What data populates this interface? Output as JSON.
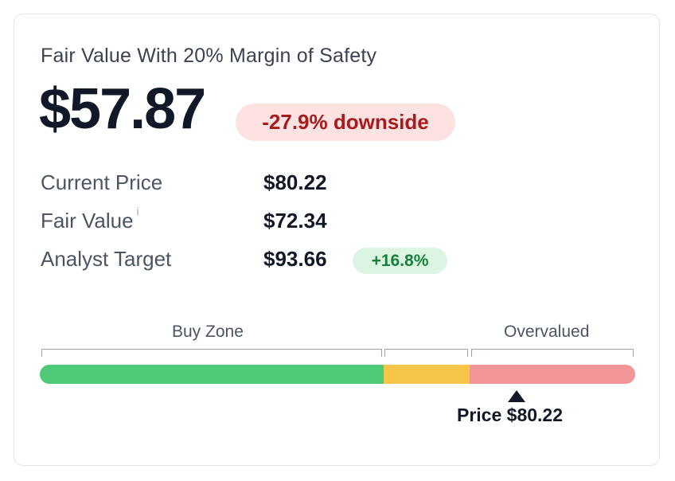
{
  "card": {
    "title": "Fair Value With 20% Margin of Safety",
    "fair_value_mos": "$57.87",
    "downside_badge": "-27.9% downside"
  },
  "metrics": [
    {
      "label": "Current Price",
      "value": "$80.22"
    },
    {
      "label": "Fair Value",
      "value": "$72.34",
      "info_icon": "i"
    },
    {
      "label": "Analyst Target",
      "value": "$93.66",
      "badge": "+16.8%"
    }
  ],
  "valuation_bar": {
    "zones": [
      {
        "label": "Buy Zone",
        "color": "#4fca77"
      },
      {
        "label": "",
        "color": "#f6c548"
      },
      {
        "label": "Overvalued",
        "color": "#f19596"
      }
    ],
    "marker_label": "Price $80.22"
  },
  "colors": {
    "downside_bg": "#fde2e2",
    "downside_text": "#a61b1b",
    "upside_bg": "#dcf5e3",
    "upside_text": "#16803c"
  }
}
